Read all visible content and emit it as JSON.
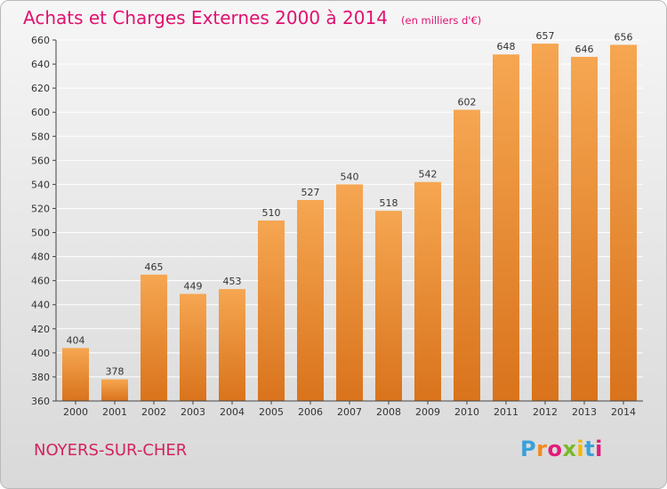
{
  "chart_data": {
    "type": "bar",
    "title": "Achats et Charges Externes 2000 à 2014",
    "subtitle": "(en milliers d'€)",
    "categories": [
      "2000",
      "2001",
      "2002",
      "2003",
      "2004",
      "2005",
      "2006",
      "2007",
      "2008",
      "2009",
      "2010",
      "2011",
      "2012",
      "2013",
      "2014"
    ],
    "values": [
      404,
      378,
      465,
      449,
      453,
      510,
      527,
      540,
      518,
      542,
      602,
      648,
      657,
      646,
      656
    ],
    "ylim": [
      360,
      660
    ],
    "yticks": [
      360,
      380,
      400,
      420,
      440,
      460,
      480,
      500,
      520,
      540,
      560,
      580,
      600,
      620,
      640,
      660
    ],
    "xlabel": "",
    "ylabel": "",
    "grid": true,
    "bar_color": "#f0933f",
    "data_labels": true
  },
  "footer": {
    "commune": "NOYERS-SUR-CHER",
    "logo_text": "Proxiti",
    "logo_colors": [
      "#3aa0d9",
      "#f08a24",
      "#e31c79",
      "#7ab829",
      "#f5b800",
      "#3aa0d9",
      "#e31c79"
    ]
  },
  "colors": {
    "title": "#e0116f",
    "grid": "#ffffff",
    "axis": "#444444"
  }
}
